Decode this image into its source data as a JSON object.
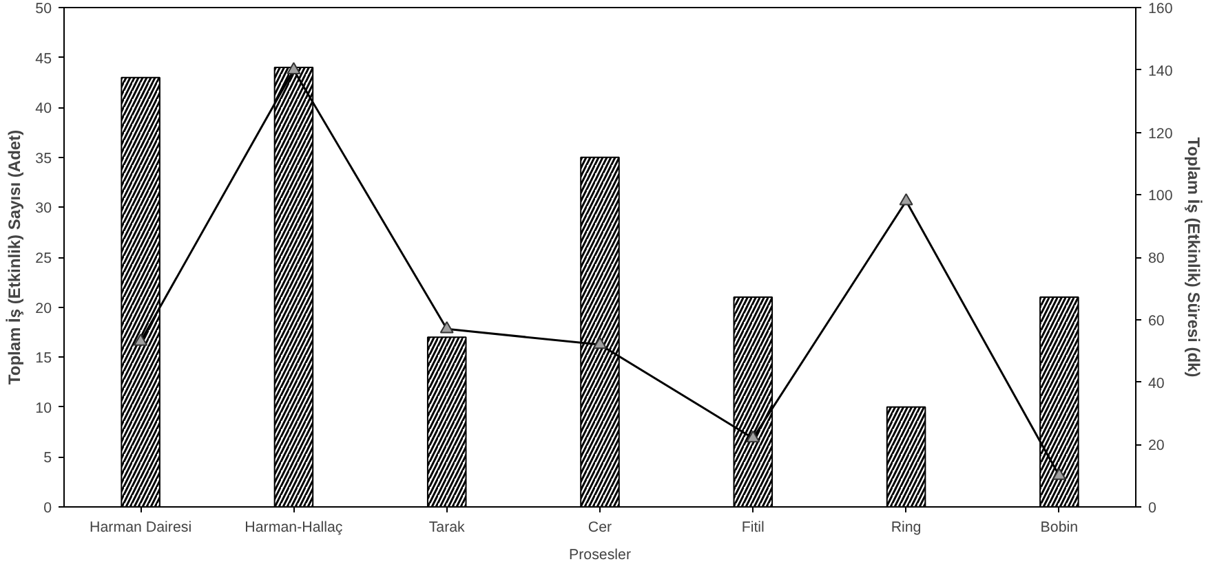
{
  "chart_data": {
    "type": "bar",
    "xlabel": "Prosesler",
    "ylabel": "Toplam İş (Etkinlik) Sayısı (Adet)",
    "y2label": "Toplam İş (Etkinlik) Süresi (dk)",
    "categories": [
      "Harman Dairesi",
      "Harman-Hallaç",
      "Tarak",
      "Cer",
      "Fitil",
      "Ring",
      "Bobin"
    ],
    "series": [
      {
        "color": "#000000",
        "values": [
          43,
          44,
          17,
          35,
          21,
          10,
          21
        ]
      },
      {
        "type": "line",
        "axis": "y2",
        "color": "#000000",
        "values": [
          53,
          140,
          57,
          52,
          22,
          98,
          10
        ]
      }
    ],
    "ylim": [
      0,
      50
    ],
    "yticks": [
      0,
      5,
      10,
      15,
      20,
      25,
      30,
      35,
      40,
      45,
      50
    ],
    "y2lim": [
      0,
      160
    ],
    "y2ticks": [
      0,
      20,
      40,
      60,
      80,
      100,
      120,
      140,
      160
    ],
    "marker": "triangle",
    "line_style": "solid",
    "grid": false
  }
}
